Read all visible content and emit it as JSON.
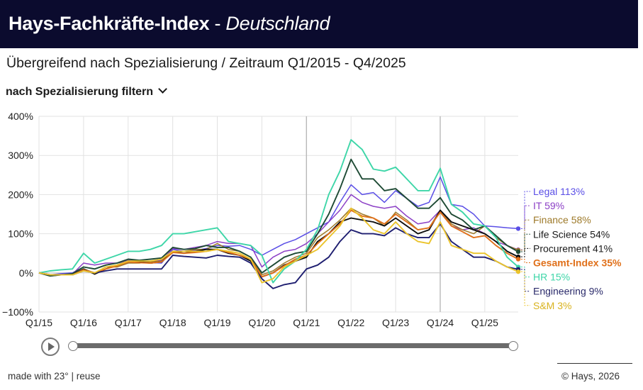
{
  "header": {
    "title": "Hays-Fachkräfte-Index",
    "separator": " - ",
    "region": "Deutschland"
  },
  "subtitle": "Übergreifend nach Spezialisierung / Zeitraum Q1/2015 - Q4/2025",
  "filter": {
    "label": "nach Spezialisierung filtern"
  },
  "footer": {
    "made_with": "made with 23°",
    "sep": " | ",
    "reuse": "reuse",
    "copyright": "© Hays, 2026"
  },
  "chart_data": {
    "type": "line",
    "title": "Hays-Fachkräfte-Index - Deutschland",
    "ylim": [
      -100,
      400
    ],
    "yticks": [
      -100,
      0,
      100,
      200,
      300,
      400
    ],
    "ytick_labels": [
      "−100%",
      "0%",
      "100%",
      "200%",
      "300%",
      "400%"
    ],
    "xlim": [
      0,
      43
    ],
    "xticks": [
      0,
      4,
      8,
      12,
      16,
      20,
      24,
      28,
      32,
      36,
      40
    ],
    "xtick_labels": [
      "Q1/15",
      "Q1/16",
      "Q1/17",
      "Q1/18",
      "Q1/19",
      "Q1/20",
      "Q1/21",
      "Q1/22",
      "Q1/23",
      "Q1/24",
      "Q1/25"
    ],
    "marked_quarters": [
      24,
      36
    ],
    "x_unit": "quarters since Q1/2015",
    "series": [
      {
        "name": "Legal",
        "label": "Legal 113%",
        "color": "#5a4ee6",
        "bold": false,
        "values": [
          0,
          -5,
          -2,
          0,
          15,
          10,
          20,
          25,
          30,
          28,
          26,
          25,
          60,
          55,
          58,
          62,
          70,
          68,
          70,
          60,
          45,
          60,
          75,
          85,
          100,
          115,
          130,
          180,
          225,
          200,
          205,
          180,
          210,
          190,
          170,
          180,
          245,
          175,
          170,
          150,
          120,
          118,
          115,
          113
        ]
      },
      {
        "name": "IT",
        "label": "IT 59%",
        "color": "#8c40c6",
        "bold": false,
        "values": [
          0,
          -8,
          -5,
          -3,
          25,
          20,
          25,
          25,
          32,
          30,
          30,
          32,
          62,
          60,
          65,
          70,
          80,
          75,
          75,
          70,
          15,
          40,
          55,
          60,
          75,
          100,
          130,
          160,
          200,
          180,
          170,
          165,
          170,
          145,
          125,
          130,
          160,
          120,
          110,
          115,
          100,
          80,
          70,
          59
        ]
      },
      {
        "name": "Finance",
        "label": "Finance 58%",
        "color": "#9e7a2a",
        "bold": false,
        "values": [
          0,
          -5,
          -5,
          -5,
          10,
          0,
          15,
          15,
          25,
          25,
          28,
          30,
          55,
          55,
          60,
          60,
          75,
          60,
          55,
          40,
          -5,
          5,
          25,
          40,
          50,
          90,
          110,
          135,
          165,
          150,
          140,
          120,
          155,
          135,
          110,
          115,
          160,
          125,
          110,
          100,
          120,
          90,
          70,
          58
        ]
      },
      {
        "name": "Life Science",
        "label": "Life Science 54%",
        "color": "#1e4a34",
        "bold": true,
        "values": [
          0,
          -8,
          -5,
          -2,
          15,
          10,
          20,
          25,
          35,
          32,
          35,
          38,
          65,
          60,
          62,
          70,
          65,
          65,
          55,
          40,
          0,
          20,
          40,
          50,
          55,
          100,
          150,
          215,
          290,
          240,
          240,
          210,
          215,
          190,
          165,
          165,
          192,
          150,
          135,
          110,
          120,
          95,
          70,
          54
        ]
      },
      {
        "name": "Procurement",
        "label": "Procurement 41%",
        "color": "#0d0d0d",
        "bold": true,
        "values": [
          0,
          -5,
          -5,
          -5,
          10,
          -3,
          10,
          20,
          30,
          28,
          25,
          28,
          55,
          50,
          55,
          60,
          60,
          50,
          45,
          30,
          -10,
          0,
          20,
          30,
          40,
          80,
          100,
          130,
          140,
          135,
          130,
          120,
          140,
          120,
          100,
          110,
          160,
          130,
          120,
          110,
          100,
          80,
          55,
          41
        ]
      },
      {
        "name": "Gesamt-Index",
        "label": "Gesamt-Index 35%",
        "color": "#e0701a",
        "bold": true,
        "values": [
          0,
          -5,
          -5,
          -5,
          8,
          0,
          10,
          18,
          28,
          26,
          25,
          28,
          52,
          50,
          52,
          55,
          60,
          52,
          45,
          35,
          -10,
          0,
          18,
          35,
          45,
          75,
          100,
          125,
          160,
          145,
          140,
          125,
          150,
          130,
          110,
          115,
          155,
          120,
          105,
          90,
          95,
          70,
          50,
          35
        ]
      },
      {
        "name": "HR",
        "label": "HR 15%",
        "color": "#3ed6a8",
        "bold": true,
        "values": [
          0,
          5,
          8,
          10,
          50,
          25,
          35,
          45,
          55,
          55,
          60,
          70,
          100,
          100,
          105,
          110,
          115,
          80,
          75,
          70,
          45,
          -25,
          10,
          30,
          60,
          110,
          200,
          260,
          340,
          315,
          265,
          260,
          270,
          240,
          210,
          210,
          267,
          175,
          155,
          125,
          120,
          90,
          40,
          15
        ]
      },
      {
        "name": "Engineering",
        "label": "Engineering 9%",
        "color": "#1e1e70",
        "bold": true,
        "values": [
          0,
          -5,
          -5,
          -5,
          5,
          0,
          5,
          10,
          10,
          10,
          10,
          10,
          45,
          42,
          40,
          38,
          45,
          42,
          40,
          25,
          -15,
          -40,
          -30,
          -25,
          10,
          20,
          40,
          80,
          110,
          100,
          100,
          95,
          115,
          100,
          90,
          90,
          125,
          80,
          60,
          40,
          40,
          30,
          15,
          9
        ]
      },
      {
        "name": "S&M",
        "label": "S&M 3%",
        "color": "#ebc42c",
        "bold": true,
        "values": [
          0,
          -5,
          -5,
          -5,
          5,
          0,
          15,
          20,
          30,
          30,
          30,
          35,
          55,
          55,
          55,
          55,
          60,
          55,
          50,
          35,
          -25,
          -15,
          15,
          30,
          45,
          60,
          90,
          120,
          165,
          140,
          110,
          100,
          130,
          100,
          80,
          75,
          130,
          70,
          60,
          50,
          50,
          30,
          15,
          3
        ]
      }
    ]
  }
}
